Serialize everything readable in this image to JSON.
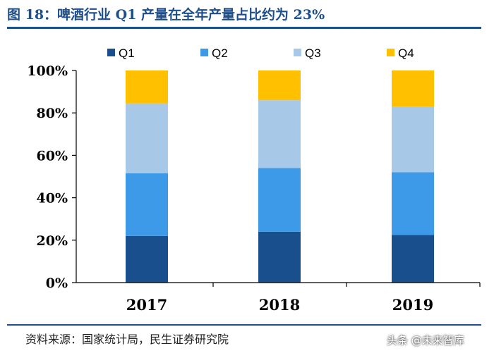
{
  "title": "图 18：啤酒行业 Q1 产量在全年产量占比约为 23%",
  "source": "资料来源：国家统计局，民生证券研究院",
  "watermark": "头条 @未来智库",
  "colors": {
    "Q1": "#1a4f8d",
    "Q2": "#3d9ae8",
    "Q3": "#a8c8e8",
    "Q4": "#ffc000",
    "axis": "#000000",
    "title": "#1d4f8c"
  },
  "chart_data": {
    "type": "bar",
    "stacked": true,
    "categories": [
      "2017",
      "2018",
      "2019"
    ],
    "series": [
      {
        "name": "Q1",
        "values": [
          22,
          24,
          22.5
        ]
      },
      {
        "name": "Q2",
        "values": [
          29.5,
          30,
          29.5
        ]
      },
      {
        "name": "Q3",
        "values": [
          33,
          32,
          31
        ]
      },
      {
        "name": "Q4",
        "values": [
          15.5,
          14,
          17
        ]
      }
    ],
    "ylim": [
      0,
      100
    ],
    "yticks": [
      "0%",
      "20%",
      "40%",
      "60%",
      "80%",
      "100%"
    ],
    "legend": "top",
    "grid": false
  }
}
